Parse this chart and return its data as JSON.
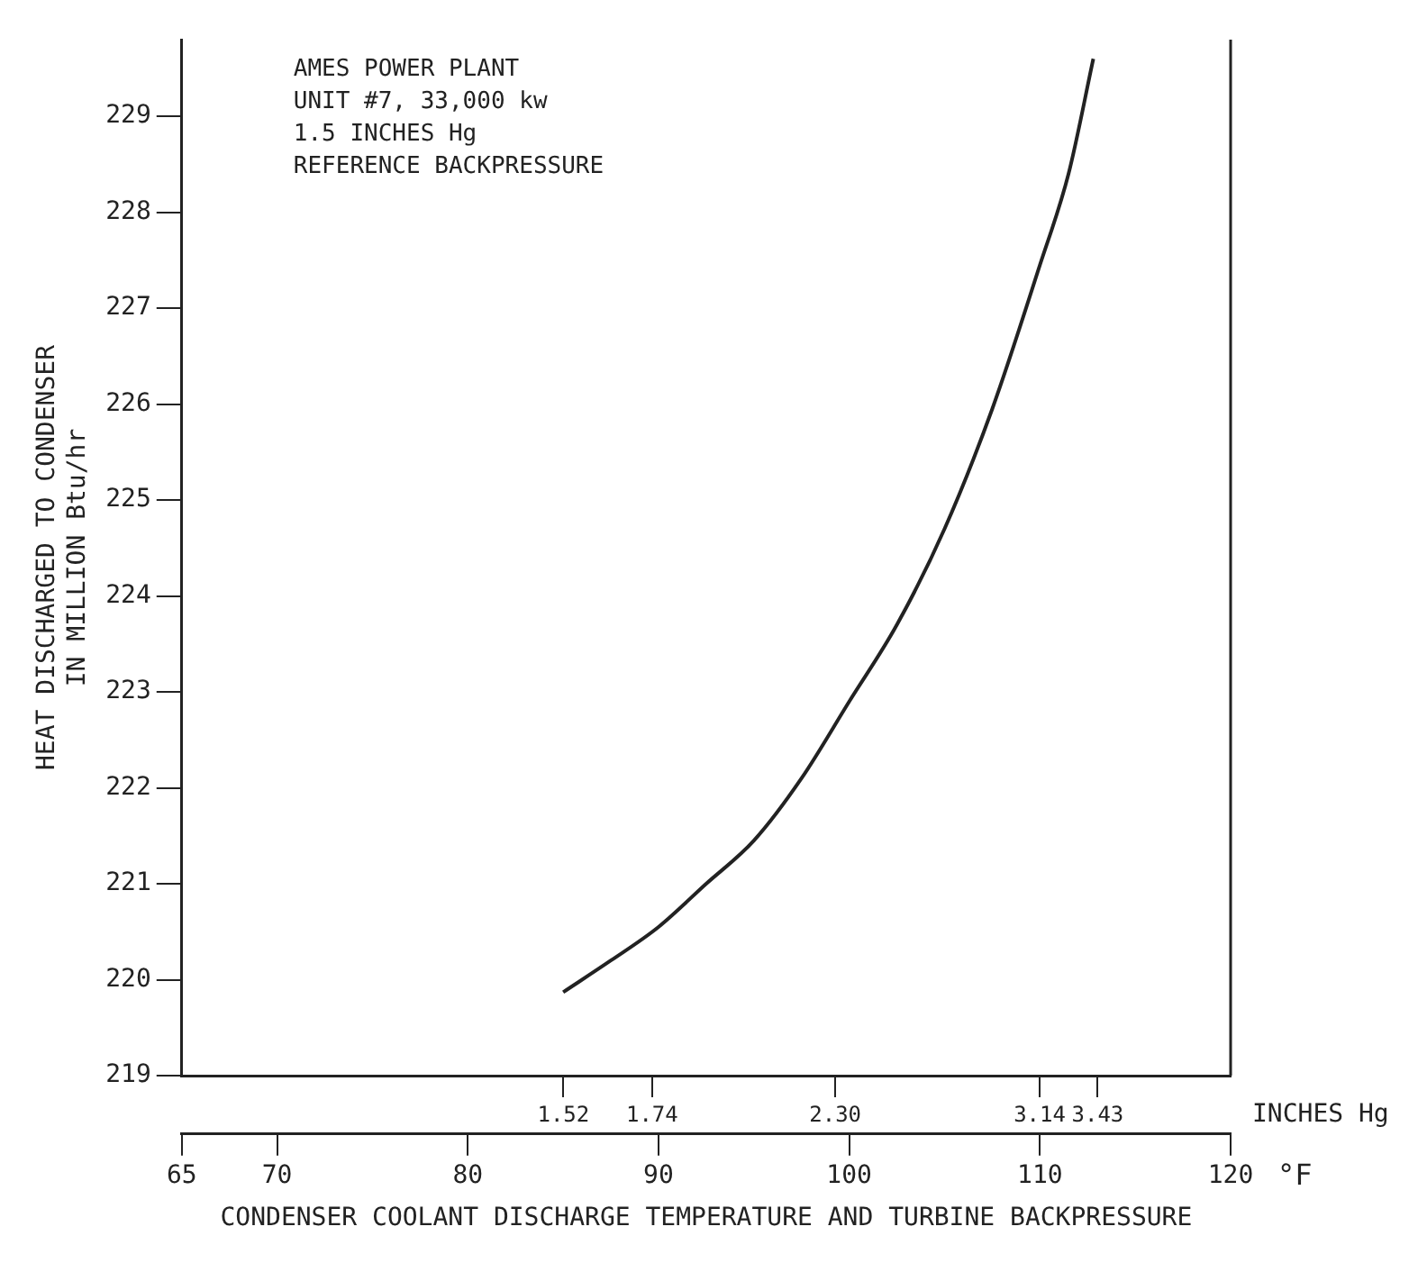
{
  "chart_data": {
    "type": "line",
    "title": "AMES POWER PLANT",
    "subtitle": "UNIT #7, 33,000 kw\n1.5 INCHES Hg\nREFERENCE BACKPRESSURE",
    "xlabel": "CONDENSER COOLANT DISCHARGE TEMPERATURE AND TURBINE BACKPRESSURE",
    "ylabel": "HEAT DISCHARGED TO CONDENSER\nIN MILLION Btu/hr",
    "x2label": "INCHES Hg",
    "annotations": [
      "°F"
    ],
    "series": [
      {
        "color": "#222222",
        "x": [
          85,
          87.5,
          90,
          92.5,
          95,
          97.5,
          100,
          102.5,
          105,
          107.5,
          110,
          111.5,
          112.8
        ],
        "values": [
          219.87,
          220.2,
          220.55,
          221.0,
          221.45,
          222.1,
          222.9,
          223.7,
          224.7,
          225.95,
          227.45,
          228.4,
          229.6
        ]
      }
    ],
    "xlim": [
      65,
      120
    ],
    "xticks": [
      65,
      70,
      80,
      90,
      100,
      110,
      120
    ],
    "x2lim": [
      0.85,
      4.2
    ],
    "x2ticks": [
      {
        "value": 1.52,
        "label": "1.52"
      },
      {
        "value": 1.74,
        "label": "1.74"
      },
      {
        "value": 2.3,
        "label": "2.30"
      },
      {
        "value": 3.14,
        "label": "3.14"
      },
      {
        "value": 3.43,
        "label": "3.43"
      }
    ],
    "log": "x2",
    "ylim": [
      219,
      229.8
    ],
    "yticks": [
      219,
      220,
      221,
      222,
      223,
      224,
      225,
      226,
      227,
      228,
      229
    ],
    "grid": false
  }
}
